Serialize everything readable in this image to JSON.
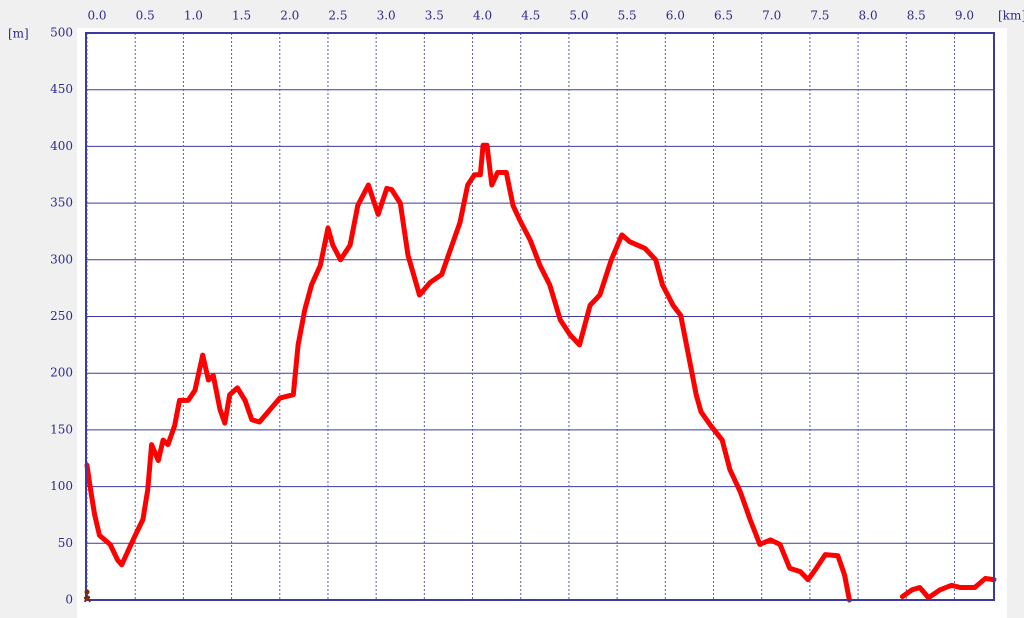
{
  "chart_data": {
    "type": "line",
    "x_unit": "[km]",
    "y_unit": "[m]",
    "xlim": [
      0,
      9.41
    ],
    "ylim": [
      0,
      500
    ],
    "xticks": [
      {
        "value": 0,
        "label": "0.0"
      },
      0.5,
      {
        "value": 1,
        "label": "1.0"
      },
      1.5,
      {
        "value": 2,
        "label": "2.0"
      },
      2.5,
      {
        "value": 3,
        "label": "3.0"
      },
      3.5,
      {
        "value": 4,
        "label": "4.0"
      },
      4.5,
      {
        "value": 5,
        "label": "5.0"
      },
      5.5,
      {
        "value": 6,
        "label": "6.0"
      },
      6.5,
      {
        "value": 7,
        "label": "7.0"
      },
      7.5,
      {
        "value": 8,
        "label": "8.0"
      },
      8.5,
      {
        "value": 9,
        "label": "9.0"
      }
    ],
    "yticks": [
      0,
      50,
      100,
      150,
      200,
      250,
      300,
      350,
      400,
      450,
      500
    ],
    "grid": true,
    "series": [
      {
        "color": "#ff0000",
        "x": [
          0,
          0.03,
          0.08,
          0.13,
          0.24,
          0.32,
          0.36,
          0.43,
          0.5,
          0.58,
          0.63,
          0.67,
          0.74,
          0.79,
          0.84,
          0.91,
          0.96,
          1.05,
          1.12,
          1.2,
          1.26,
          1.31,
          1.38,
          1.43,
          1.48,
          1.56,
          1.64,
          1.71,
          1.79,
          1.9,
          2.0,
          2.14,
          2.19,
          2.26,
          2.33,
          2.42,
          2.5,
          2.55,
          2.63,
          2.73,
          2.81,
          2.92,
          3.02,
          3.11,
          3.16,
          3.25,
          3.33,
          3.45,
          3.56,
          3.68,
          3.77,
          3.87,
          3.95,
          4.02,
          4.08,
          4.11,
          4.15,
          4.2,
          4.26,
          4.35,
          4.42,
          4.49,
          4.6,
          4.7,
          4.8,
          4.91,
          5.01,
          5.11,
          5.22,
          5.32,
          5.44,
          5.55,
          5.63,
          5.79,
          5.9,
          5.97,
          6.08,
          6.16,
          6.24,
          6.32,
          6.37,
          6.47,
          6.59,
          6.67,
          6.78,
          6.88,
          6.98,
          7.09,
          7.19,
          7.29,
          7.4,
          7.48,
          7.55,
          7.66,
          7.79,
          7.86,
          7.91,
          8.2,
          8.46,
          8.56,
          8.64,
          8.73,
          8.85,
          8.97,
          9.06,
          9.21,
          9.32,
          9.41
        ],
        "values": [
          119,
          101,
          75,
          57,
          49,
          35,
          31,
          44,
          57,
          71,
          97,
          137,
          123,
          141,
          137,
          154,
          176,
          176,
          185,
          216,
          194,
          198,
          168,
          156,
          181,
          187,
          176,
          159,
          157,
          168,
          178,
          181,
          225,
          256,
          278,
          295,
          328,
          313,
          300,
          313,
          348,
          366,
          340,
          363,
          362,
          350,
          304,
          269,
          280,
          287,
          309,
          333,
          366,
          375,
          375,
          401,
          401,
          366,
          377,
          377,
          348,
          335,
          317,
          295,
          278,
          247,
          234,
          225,
          260,
          269,
          300,
          322,
          316,
          310,
          300,
          278,
          260,
          251,
          216,
          181,
          166,
          154,
          141,
          115,
          95,
          71,
          49,
          53,
          49,
          28,
          25,
          18,
          26,
          40,
          39,
          22,
          0,
          null,
          3,
          9,
          11,
          2,
          9,
          13,
          11,
          11,
          19,
          18
        ]
      }
    ]
  }
}
